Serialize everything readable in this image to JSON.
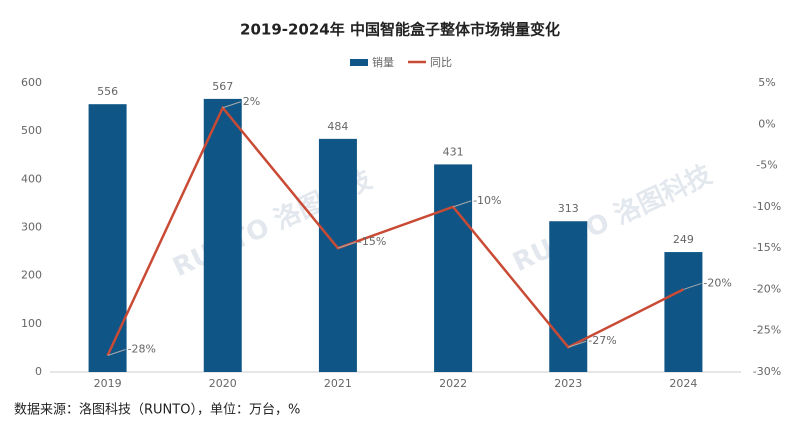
{
  "chart_data": {
    "type": "combo",
    "title": "2019-2024年 中国智能盒子整体市场销量变化",
    "categories": [
      "2019",
      "2020",
      "2021",
      "2022",
      "2023",
      "2024"
    ],
    "series": [
      {
        "name": "销量",
        "type": "bar",
        "color": "#0f5586",
        "values": [
          556,
          567,
          484,
          431,
          313,
          249
        ]
      },
      {
        "name": "同比",
        "type": "line",
        "axis": "y2",
        "color": "#c94a35",
        "values": [
          -28,
          2,
          -15,
          -10,
          -27,
          -20
        ],
        "value_labels": [
          "-28%",
          "2%",
          "-15%",
          "-10%",
          "-27%",
          "-20%"
        ]
      }
    ],
    "ylim": [
      0,
      600
    ],
    "yticks": [
      0,
      100,
      200,
      300,
      400,
      500,
      600
    ],
    "y2lim": [
      -30,
      5
    ],
    "y2ticks": [
      {
        "value": -30,
        "label": "-30%"
      },
      {
        "value": -25,
        "label": "-25%"
      },
      {
        "value": -20,
        "label": "-20%"
      },
      {
        "value": -15,
        "label": "-15%"
      },
      {
        "value": -10,
        "label": "-10%"
      },
      {
        "value": -5,
        "label": "-5%"
      },
      {
        "value": 0,
        "label": "0%"
      },
      {
        "value": 5,
        "label": "5%"
      }
    ],
    "watermark": "RUNTO 洛图科技",
    "source": "数据来源：洛图科技（RUNTO），单位：万台，%"
  }
}
